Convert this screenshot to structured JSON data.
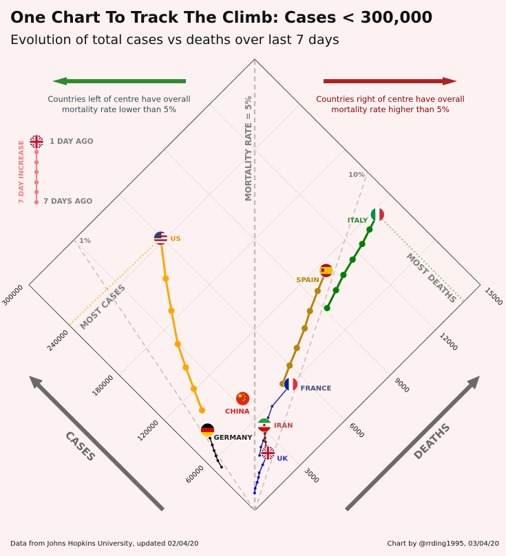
{
  "title": "One Chart To Track The Climb: Cases < 300,000",
  "subtitle": "Evolution of total cases vs deaths over last 7 days",
  "footer": {
    "source": "Data from Johns Hopkins University, updated 02/04/20",
    "credit": "Chart by @rrding1995, 03/04/20"
  },
  "annotations": {
    "left_note_line1": "Countries left of centre have overall",
    "left_note_line2": "mortality rate lower than 5%",
    "right_note_line1": "Countries right of centre have overall",
    "right_note_line2": "mortality rate higher than 5%",
    "mortality_axis": "MORTALITY RATE = 5%",
    "most_cases": "MOST CASES",
    "most_deaths": "MOST DEATHS",
    "rate_1": "1%",
    "rate_10": "10%",
    "legend_title": "7 DAY INCREASE",
    "legend_top": "1 DAY AGO",
    "legend_bottom": "7 DAYS AGO",
    "arrow_cases": "CASES",
    "arrow_deaths": "DEATHS"
  },
  "colors": {
    "background": "#fcf2f2",
    "left_arrow": "#2e8b2e",
    "right_arrow": "#b22222",
    "legend": "#f08080"
  },
  "chart_data": {
    "type": "scatter",
    "x_axis": {
      "label": "Cases",
      "range": [
        0,
        300000
      ],
      "ticks": [
        60000,
        120000,
        180000,
        240000,
        300000
      ]
    },
    "y_axis": {
      "label": "Deaths",
      "range": [
        0,
        15000
      ],
      "ticks": [
        3000,
        6000,
        9000,
        12000,
        15000
      ]
    },
    "mortality_lines": [
      0.01,
      0.05,
      0.1
    ],
    "series": [
      {
        "name": "US",
        "color": "#ffa500",
        "label_color": "#e69500",
        "flag": "us",
        "cases": [
          101657,
          121478,
          140886,
          161807,
          188172,
          213372,
          243453
        ],
        "deaths": [
          1581,
          2026,
          2467,
          2978,
          3873,
          4757,
          5926
        ]
      },
      {
        "name": "ITALY",
        "color": "#008000",
        "label_color": "#2e8b2e",
        "flag": "it",
        "cases": [
          86498,
          92472,
          97689,
          101739,
          105792,
          110574,
          115242
        ],
        "deaths": [
          9134,
          10023,
          10779,
          11591,
          12428,
          13155,
          13915
        ]
      },
      {
        "name": "SPAIN",
        "color": "#b8860b",
        "label_color": "#b8860b",
        "flag": "es",
        "cases": [
          65719,
          73235,
          80110,
          87956,
          95923,
          104118,
          112065
        ],
        "deaths": [
          5138,
          5982,
          6803,
          7716,
          8464,
          9387,
          10348
        ]
      },
      {
        "name": "FRANCE",
        "color": "#1a237e",
        "label_color": "#4a4a8a",
        "flag": "fr",
        "cases": [
          33402,
          38105,
          40708,
          45170,
          52827,
          57749,
          59929
        ],
        "deaths": [
          1997,
          2317,
          2611,
          3030,
          3532,
          4043,
          5398
        ]
      },
      {
        "name": "CHINA",
        "color": "#ff0000",
        "label_color": "#e02020",
        "flag": "cn",
        "cases": [
          81782,
          81897,
          81999,
          82122,
          82198,
          82279,
          82361
        ],
        "deaths": [
          3304,
          3307,
          3311,
          3314,
          3318,
          3322,
          3326
        ]
      },
      {
        "name": "GERMANY",
        "color": "#000000",
        "label_color": "#222222",
        "flag": "de",
        "cases": [
          50871,
          57695,
          62095,
          66885,
          71808,
          77872,
          84794
        ],
        "deaths": [
          342,
          433,
          533,
          645,
          775,
          920,
          1107
        ]
      },
      {
        "name": "IRAN",
        "color": "#8b1a1a",
        "label_color": "#c04040",
        "flag": "ir",
        "cases": [
          32332,
          35408,
          38309,
          41495,
          44605,
          47593,
          50468
        ],
        "deaths": [
          2378,
          2517,
          2640,
          2757,
          2898,
          3036,
          3160
        ]
      },
      {
        "name": "UK",
        "color": "#0000cd",
        "label_color": "#3030c0",
        "flag": "uk",
        "cases": [
          11658,
          14543,
          17089,
          19522,
          22141,
          25150,
          29474
        ],
        "deaths": [
          578,
          759,
          1019,
          1228,
          1408,
          1789,
          2352
        ]
      }
    ]
  }
}
